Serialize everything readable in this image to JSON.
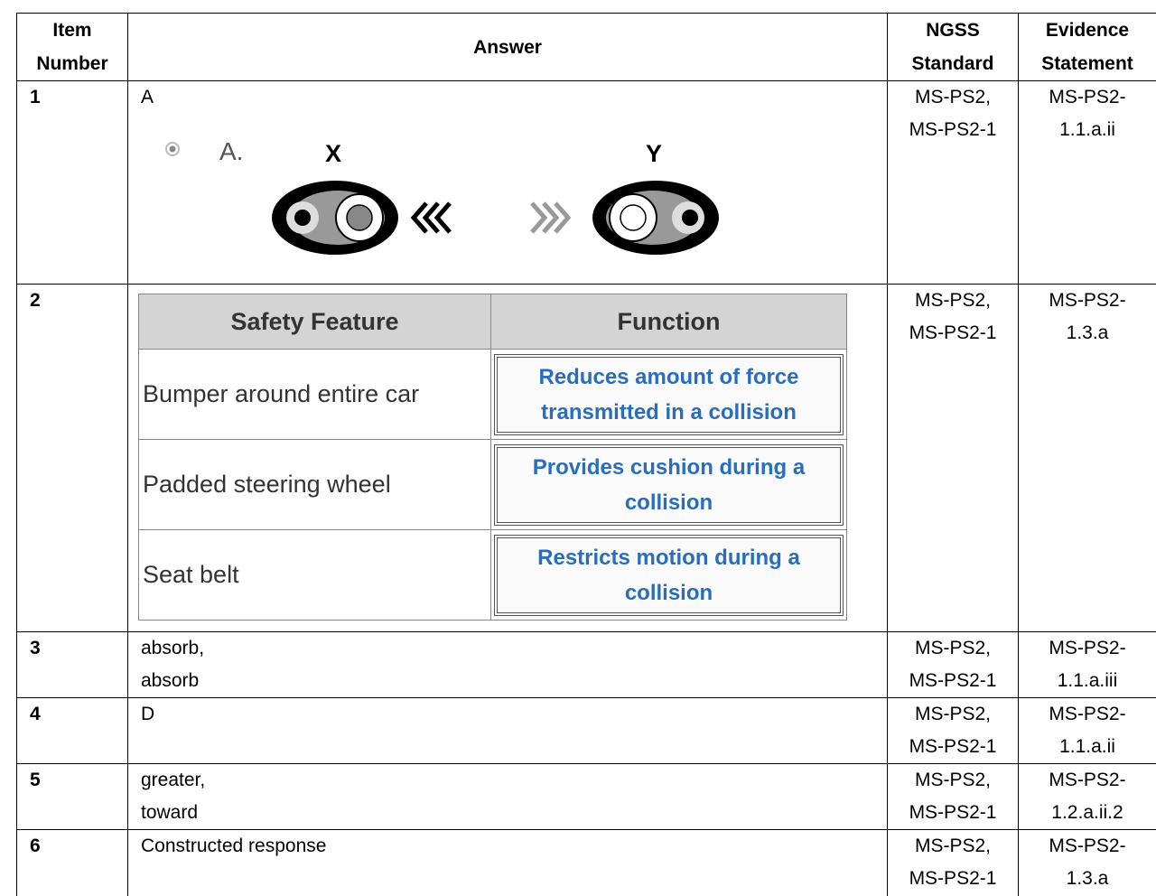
{
  "header": {
    "item": [
      "Item",
      "Number"
    ],
    "answer": [
      "Answer"
    ],
    "standard": [
      "NGSS",
      "Standard"
    ],
    "evidence": [
      "Evidence",
      "Statement"
    ]
  },
  "rows": [
    {
      "item": "1",
      "answer": {
        "lines": [
          "A"
        ],
        "figure": {
          "option": "A.",
          "labels": [
            "X",
            "Y"
          ]
        }
      },
      "standard": [
        "MS-PS2,",
        "MS-PS2-1"
      ],
      "evidence": [
        "MS-PS2-",
        "1.1.a.ii"
      ]
    },
    {
      "item": "2",
      "answer": {
        "table": {
          "header": [
            "Safety Feature",
            "Function"
          ],
          "rows": [
            [
              "Bumper around entire car",
              "Reduces amount of force transmitted in a collision"
            ],
            [
              "Padded steering wheel",
              "Provides cushion during a collision"
            ],
            [
              "Seat belt",
              "Restricts motion during a collision"
            ]
          ]
        }
      },
      "standard": [
        "MS-PS2,",
        "MS-PS2-1"
      ],
      "evidence": [
        "MS-PS2-",
        "1.3.a"
      ]
    },
    {
      "item": "3",
      "answer": {
        "lines": [
          "absorb,",
          "absorb"
        ]
      },
      "standard": [
        "MS-PS2,",
        "MS-PS2-1"
      ],
      "evidence": [
        "MS-PS2-",
        "1.1.a.iii"
      ]
    },
    {
      "item": "4",
      "answer": {
        "lines": [
          "D"
        ]
      },
      "standard": [
        "MS-PS2,",
        "MS-PS2-1"
      ],
      "evidence": [
        "MS-PS2-",
        "1.1.a.ii"
      ]
    },
    {
      "item": "5",
      "answer": {
        "lines": [
          "greater,",
          "toward"
        ]
      },
      "standard": [
        "MS-PS2,",
        "MS-PS2-1"
      ],
      "evidence": [
        "MS-PS2-",
        "1.2.a.ii.2"
      ]
    },
    {
      "item": "6",
      "answer": {
        "lines": [
          "Constructed response"
        ]
      },
      "standard": [
        "MS-PS2,",
        "MS-PS2-1"
      ],
      "evidence": [
        "MS-PS2-",
        "1.3.a"
      ]
    }
  ]
}
